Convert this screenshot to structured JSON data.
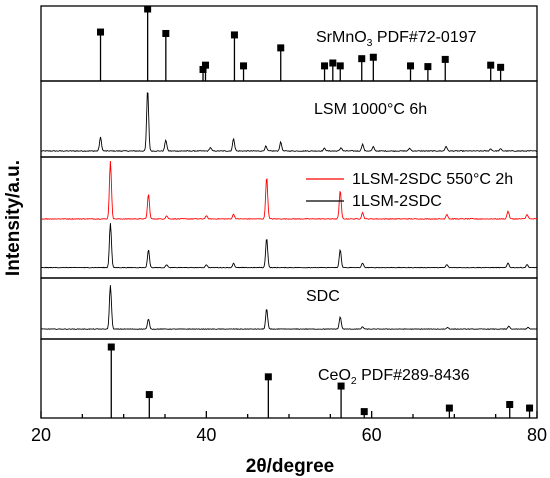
{
  "chart_data": {
    "type": "line",
    "title": "",
    "xlabel": "2θ/degree",
    "ylabel": "Intensity/a.u.",
    "xlim": [
      20,
      80
    ],
    "xticks": [
      20,
      40,
      60,
      80
    ],
    "grid": false,
    "panels": [
      {
        "kind": "reference",
        "label": "SrMnO",
        "label_sub": "3",
        "label_tail": " PDF#72-0197",
        "peaks": [
          {
            "x": 27.2,
            "y": 0.68
          },
          {
            "x": 32.9,
            "y": 1.0
          },
          {
            "x": 35.1,
            "y": 0.66
          },
          {
            "x": 39.6,
            "y": 0.16
          },
          {
            "x": 39.9,
            "y": 0.22
          },
          {
            "x": 43.4,
            "y": 0.64
          },
          {
            "x": 44.5,
            "y": 0.21
          },
          {
            "x": 49.0,
            "y": 0.46
          },
          {
            "x": 54.3,
            "y": 0.21
          },
          {
            "x": 55.3,
            "y": 0.25
          },
          {
            "x": 56.2,
            "y": 0.21
          },
          {
            "x": 58.8,
            "y": 0.31
          },
          {
            "x": 60.2,
            "y": 0.33
          },
          {
            "x": 64.7,
            "y": 0.21
          },
          {
            "x": 66.8,
            "y": 0.2
          },
          {
            "x": 68.9,
            "y": 0.3
          },
          {
            "x": 74.4,
            "y": 0.22
          },
          {
            "x": 75.6,
            "y": 0.19
          }
        ]
      },
      {
        "kind": "pattern",
        "label": "LSM 1000°C 6h",
        "series": [
          {
            "name": "LSM 1000°C 6h",
            "color": "#000000",
            "baseline": 0.06,
            "peaks": [
              {
                "x": 27.2,
                "y": 0.2
              },
              {
                "x": 32.9,
                "y": 0.9
              },
              {
                "x": 35.1,
                "y": 0.16
              },
              {
                "x": 40.5,
                "y": 0.05
              },
              {
                "x": 43.3,
                "y": 0.18
              },
              {
                "x": 47.2,
                "y": 0.07
              },
              {
                "x": 49.0,
                "y": 0.13
              },
              {
                "x": 54.3,
                "y": 0.04
              },
              {
                "x": 56.3,
                "y": 0.05
              },
              {
                "x": 58.9,
                "y": 0.1
              },
              {
                "x": 60.2,
                "y": 0.06
              },
              {
                "x": 64.6,
                "y": 0.04
              },
              {
                "x": 69.0,
                "y": 0.07
              },
              {
                "x": 74.4,
                "y": 0.03
              },
              {
                "x": 75.6,
                "y": 0.03
              }
            ]
          }
        ]
      },
      {
        "kind": "pattern",
        "legend": true,
        "series": [
          {
            "name": "1LSM-2SDC 550°C  2h",
            "color": "#ff0000",
            "baseline": 0.53,
            "peaks": [
              {
                "x": 28.4,
                "y": 0.37
              },
              {
                "x": 33.0,
                "y": 0.16
              },
              {
                "x": 35.2,
                "y": 0.02
              },
              {
                "x": 40.0,
                "y": 0.02
              },
              {
                "x": 43.3,
                "y": 0.03
              },
              {
                "x": 47.3,
                "y": 0.27
              },
              {
                "x": 56.2,
                "y": 0.18
              },
              {
                "x": 58.9,
                "y": 0.04
              },
              {
                "x": 69.1,
                "y": 0.03
              },
              {
                "x": 76.5,
                "y": 0.05
              },
              {
                "x": 78.8,
                "y": 0.03
              }
            ]
          },
          {
            "name": "1LSM-2SDC",
            "color": "#000000",
            "baseline": 0.07,
            "peaks": [
              {
                "x": 28.4,
                "y": 0.3
              },
              {
                "x": 33.0,
                "y": 0.12
              },
              {
                "x": 35.2,
                "y": 0.02
              },
              {
                "x": 40.0,
                "y": 0.02
              },
              {
                "x": 43.3,
                "y": 0.03
              },
              {
                "x": 47.3,
                "y": 0.2
              },
              {
                "x": 56.2,
                "y": 0.12
              },
              {
                "x": 58.9,
                "y": 0.03
              },
              {
                "x": 69.1,
                "y": 0.02
              },
              {
                "x": 76.5,
                "y": 0.03
              },
              {
                "x": 78.8,
                "y": 0.02
              }
            ]
          }
        ]
      },
      {
        "kind": "pattern",
        "label": "SDC",
        "series": [
          {
            "name": "SDC",
            "color": "#000000",
            "baseline": 0.08,
            "peaks": [
              {
                "x": 28.4,
                "y": 0.78
              },
              {
                "x": 33.0,
                "y": 0.18
              },
              {
                "x": 47.3,
                "y": 0.36
              },
              {
                "x": 56.2,
                "y": 0.22
              },
              {
                "x": 58.9,
                "y": 0.04
              },
              {
                "x": 69.2,
                "y": 0.03
              },
              {
                "x": 76.6,
                "y": 0.05
              },
              {
                "x": 78.9,
                "y": 0.03
              }
            ]
          }
        ]
      },
      {
        "kind": "reference",
        "label": "CeO",
        "label_sub": "2",
        "label_tail": " PDF#289-8436",
        "peaks": [
          {
            "x": 28.5,
            "y": 1.0
          },
          {
            "x": 33.1,
            "y": 0.33
          },
          {
            "x": 47.5,
            "y": 0.58
          },
          {
            "x": 56.3,
            "y": 0.45
          },
          {
            "x": 59.1,
            "y": 0.09
          },
          {
            "x": 69.4,
            "y": 0.14
          },
          {
            "x": 76.7,
            "y": 0.19
          },
          {
            "x": 79.1,
            "y": 0.14
          }
        ]
      }
    ]
  }
}
